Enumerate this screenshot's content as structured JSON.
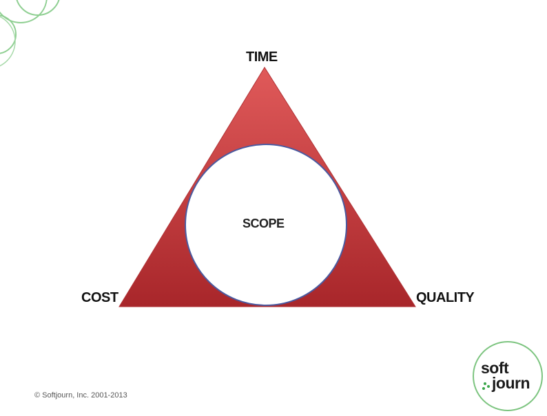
{
  "diagram": {
    "vertices": {
      "top": "TIME",
      "bottom_left": "COST",
      "bottom_right": "QUALITY"
    },
    "center_label": "SCOPE"
  },
  "footer": {
    "copyright": "© Softjourn, Inc. 2001-2013"
  },
  "logo": {
    "part1": "soft",
    "part2": "journ"
  },
  "colors": {
    "triangle": "#c8393b",
    "circle_outline": "#4a5aa0",
    "accent_green": "#7cc47f"
  }
}
